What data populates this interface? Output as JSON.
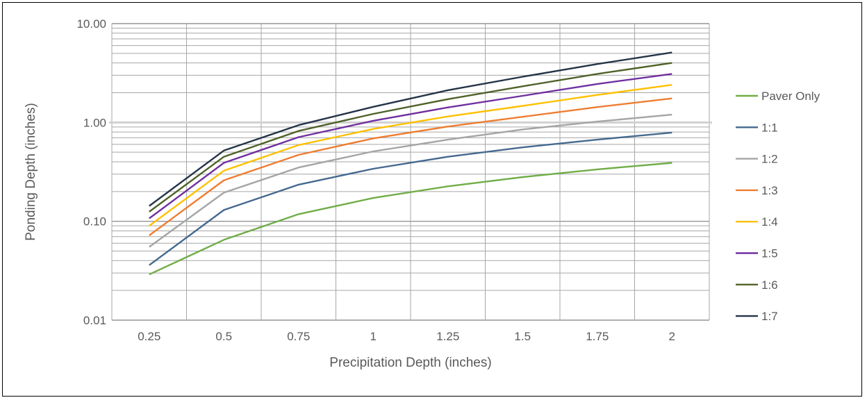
{
  "chart_data": {
    "type": "line",
    "title": "",
    "xlabel": "Precipitation Depth (inches)",
    "ylabel": "Ponding Depth (inches)",
    "y_scale": "log",
    "ylim": [
      0.01,
      10
    ],
    "y_tick_labels": [
      "10.00",
      "1.00",
      "0.10",
      "0.01"
    ],
    "y_tick_values": [
      10,
      1,
      0.1,
      0.01
    ],
    "categories": [
      "0.25",
      "0.5",
      "0.75",
      "1",
      "1.25",
      "1.5",
      "1.75",
      "2"
    ],
    "grid": true,
    "legend_position": "right",
    "series": [
      {
        "name": "Paver Only",
        "color": "#70AD47",
        "values": [
          0.029,
          0.065,
          0.118,
          0.172,
          0.226,
          0.28,
          0.335,
          0.39
        ]
      },
      {
        "name": "1:1",
        "color": "#44698F",
        "values": [
          0.036,
          0.13,
          0.235,
          0.34,
          0.45,
          0.56,
          0.67,
          0.79
        ]
      },
      {
        "name": "1:2",
        "color": "#A5A5A5",
        "values": [
          0.055,
          0.195,
          0.35,
          0.51,
          0.67,
          0.85,
          1.02,
          1.2
        ]
      },
      {
        "name": "1:3",
        "color": "#ED7D31",
        "values": [
          0.072,
          0.26,
          0.47,
          0.69,
          0.91,
          1.14,
          1.43,
          1.75
        ]
      },
      {
        "name": "1:4",
        "color": "#FFC000",
        "values": [
          0.09,
          0.325,
          0.59,
          0.86,
          1.15,
          1.47,
          1.9,
          2.4
        ]
      },
      {
        "name": "1:5",
        "color": "#7030A0",
        "values": [
          0.107,
          0.39,
          0.71,
          1.04,
          1.42,
          1.86,
          2.45,
          3.1
        ]
      },
      {
        "name": "1:6",
        "color": "#4F6228",
        "values": [
          0.125,
          0.45,
          0.82,
          1.22,
          1.72,
          2.32,
          3.1,
          4.0
        ]
      },
      {
        "name": "1:7",
        "color": "#243447",
        "values": [
          0.143,
          0.52,
          0.94,
          1.44,
          2.12,
          2.9,
          3.9,
          5.1
        ]
      }
    ]
  }
}
